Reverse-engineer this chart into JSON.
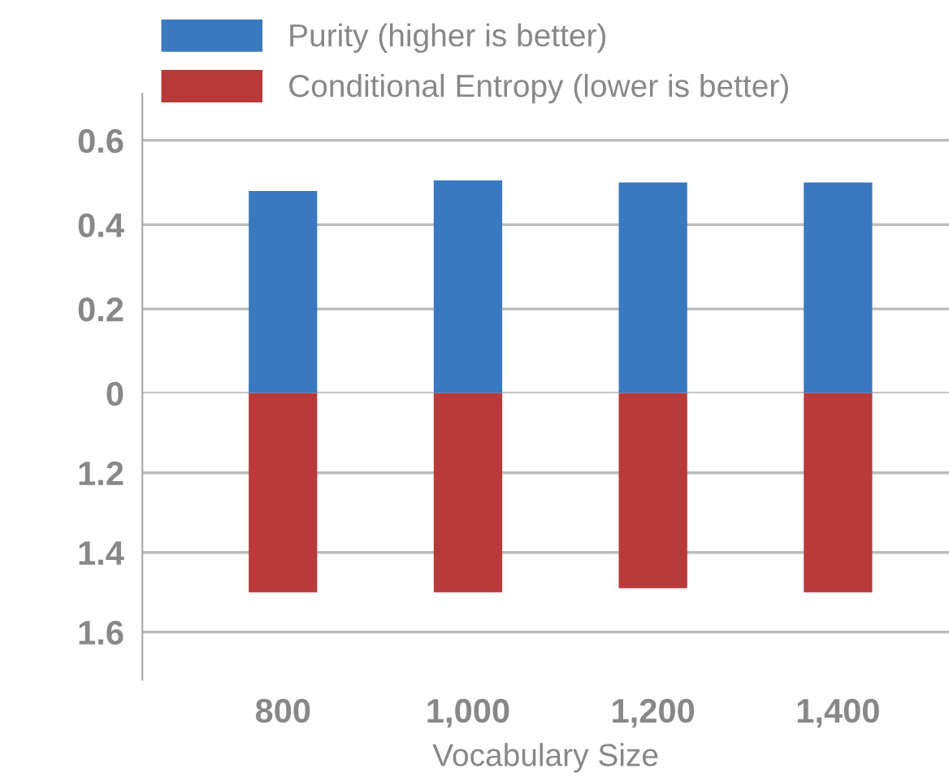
{
  "chart_data": [
    {
      "type": "bar",
      "categories": [
        "800",
        "1,000",
        "1,200",
        "1,400"
      ],
      "series": [
        {
          "name": "Purity (higher is better)",
          "color": "#3a78c0",
          "values": [
            0.48,
            0.505,
            0.5,
            0.5
          ]
        }
      ],
      "ylim": [
        0,
        0.71
      ],
      "yticks": [
        0,
        0.2,
        0.4,
        0.6
      ],
      "grid": "y",
      "legend": "top",
      "tick_labels": "y"
    },
    {
      "type": "bar",
      "categories": [
        "800",
        "1,000",
        "1,200",
        "1,400"
      ],
      "xlabel": "Vocabulary Size",
      "series": [
        {
          "name": "Conditional Entropy (lower is better)",
          "color": "#b83a3a",
          "values": [
            1.5,
            1.5,
            1.49,
            1.5
          ]
        }
      ],
      "ylim": [
        1.72,
        1.0
      ],
      "yticks": [
        1.2,
        1.4,
        1.6
      ],
      "grid": "y",
      "legend": "top"
    }
  ]
}
